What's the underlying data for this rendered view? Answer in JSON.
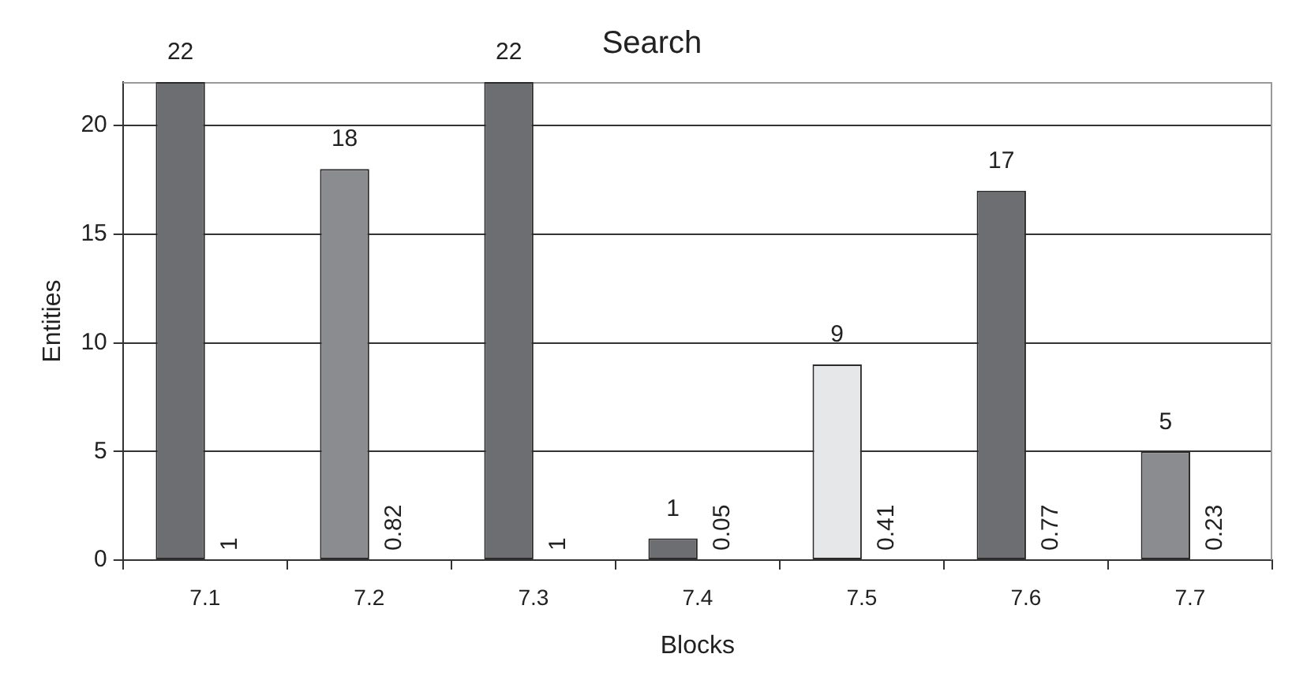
{
  "chart_data": {
    "type": "bar",
    "title": "Search",
    "xlabel": "Blocks",
    "ylabel": "Entities",
    "categories": [
      "7.1",
      "7.2",
      "7.3",
      "7.4",
      "7.5",
      "7.6",
      "7.7"
    ],
    "values": [
      22,
      18,
      22,
      1,
      9,
      17,
      5
    ],
    "colors": [
      "#6d6e71",
      "#8b8c8f",
      "#6d6e71",
      "#6d6e71",
      "#e6e7e8",
      "#6d6e71",
      "#8b8c8f"
    ],
    "data_labels": true,
    "ylim": [
      0,
      22
    ],
    "yticks": [
      0,
      5,
      10,
      15,
      20
    ],
    "grid": "y",
    "legend": false,
    "annotations": [
      "1",
      "0.82",
      "1",
      "0.05",
      "0.41",
      "0.77",
      "0.23"
    ]
  }
}
